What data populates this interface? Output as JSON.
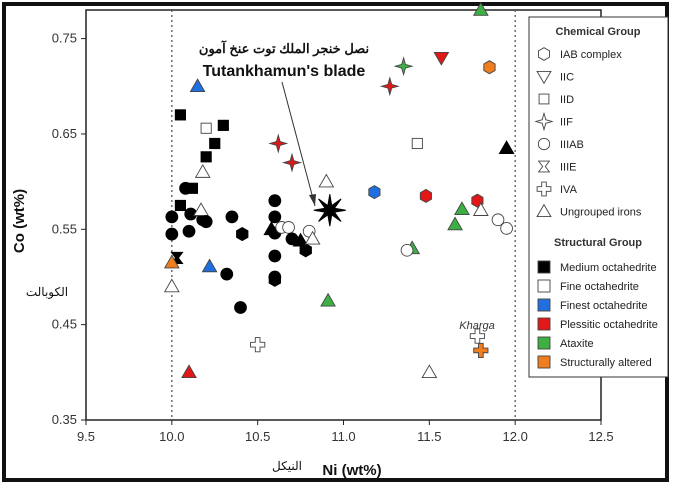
{
  "chart_data": {
    "type": "scatter",
    "xlabel": "Ni (wt%)",
    "ylabel": "Co (wt%)",
    "xlabel_arabic": "النيكل",
    "ylabel_arabic": "الكوبالت",
    "xlim": [
      9.5,
      12.5
    ],
    "ylim": [
      0.35,
      0.78
    ],
    "xticks": [
      "9.5",
      "10.0",
      "10.5",
      "11.0",
      "11.5",
      "12.0",
      "12.5"
    ],
    "yticks": [
      "0.35",
      "0.45",
      "0.55",
      "0.65",
      "0.75"
    ],
    "xtick_values": [
      9.5,
      10.0,
      10.5,
      11.0,
      11.5,
      12.0,
      12.5
    ],
    "ytick_values": [
      0.35,
      0.45,
      0.55,
      0.65,
      0.75
    ],
    "vlines": [
      10.0,
      12.0
    ],
    "annotation": {
      "arabic": "نصل خنجر الملك توت عنخ آمون",
      "english": "Tutankhamun's blade",
      "point": [
        10.92,
        0.57
      ]
    },
    "kharga_label": "Kharga",
    "colors": {
      "medium": "#000000",
      "fine": "#ffffff",
      "finest": "#1f6fe0",
      "plessitic": "#e21818",
      "ataxite": "#3cb043",
      "altered": "#f07d1e"
    },
    "legend_chemical": {
      "title": "Chemical Group",
      "items": [
        {
          "shape": "hexagon",
          "label": "IAB complex"
        },
        {
          "shape": "triangle-down",
          "label": "IIC"
        },
        {
          "shape": "square",
          "label": "IID"
        },
        {
          "shape": "star4",
          "label": "IIF"
        },
        {
          "shape": "circle",
          "label": "IIIAB"
        },
        {
          "shape": "hourglass",
          "label": "IIIE"
        },
        {
          "shape": "plus",
          "label": "IVA"
        },
        {
          "shape": "triangle",
          "label": "Ungrouped irons"
        }
      ]
    },
    "legend_structural": {
      "title": "Structural Group",
      "items": [
        {
          "color": "#000000",
          "label": "Medium octahedrite"
        },
        {
          "color": "#ffffff",
          "label": "Fine octahedrite"
        },
        {
          "color": "#1f6fe0",
          "label": "Finest octahedrite"
        },
        {
          "color": "#e21818",
          "label": "Plessitic octahedrite"
        },
        {
          "color": "#3cb043",
          "label": "Ataxite"
        },
        {
          "color": "#f07d1e",
          "label": "Structurally altered"
        }
      ]
    },
    "points": [
      {
        "x": 10.05,
        "y": 0.67,
        "shape": "square",
        "group": "medium"
      },
      {
        "x": 10.3,
        "y": 0.659,
        "shape": "square",
        "group": "medium"
      },
      {
        "x": 10.2,
        "y": 0.656,
        "shape": "square",
        "group": "fine"
      },
      {
        "x": 10.25,
        "y": 0.64,
        "shape": "square",
        "group": "medium"
      },
      {
        "x": 10.2,
        "y": 0.626,
        "shape": "square",
        "group": "medium"
      },
      {
        "x": 10.18,
        "y": 0.61,
        "shape": "triangle",
        "group": "fine"
      },
      {
        "x": 10.12,
        "y": 0.593,
        "shape": "square",
        "group": "medium"
      },
      {
        "x": 10.05,
        "y": 0.575,
        "shape": "square",
        "group": "medium"
      },
      {
        "x": 10.08,
        "y": 0.593,
        "shape": "circle",
        "group": "medium"
      },
      {
        "x": 10.6,
        "y": 0.58,
        "shape": "circle",
        "group": "medium"
      },
      {
        "x": 10.11,
        "y": 0.566,
        "shape": "circle",
        "group": "medium"
      },
      {
        "x": 10.0,
        "y": 0.563,
        "shape": "circle",
        "group": "medium"
      },
      {
        "x": 10.18,
        "y": 0.56,
        "shape": "circle",
        "group": "medium"
      },
      {
        "x": 10.35,
        "y": 0.563,
        "shape": "circle",
        "group": "medium"
      },
      {
        "x": 10.6,
        "y": 0.563,
        "shape": "circle",
        "group": "medium"
      },
      {
        "x": 10.17,
        "y": 0.57,
        "shape": "triangle",
        "group": "fine"
      },
      {
        "x": 10.2,
        "y": 0.558,
        "shape": "circle",
        "group": "medium"
      },
      {
        "x": 10.0,
        "y": 0.545,
        "shape": "circle",
        "group": "medium"
      },
      {
        "x": 10.1,
        "y": 0.548,
        "shape": "circle",
        "group": "medium"
      },
      {
        "x": 10.41,
        "y": 0.545,
        "shape": "hexagon",
        "group": "medium"
      },
      {
        "x": 10.6,
        "y": 0.546,
        "shape": "circle",
        "group": "medium"
      },
      {
        "x": 10.58,
        "y": 0.55,
        "shape": "triangle",
        "group": "medium"
      },
      {
        "x": 10.64,
        "y": 0.552,
        "shape": "circle",
        "group": "fine"
      },
      {
        "x": 10.68,
        "y": 0.552,
        "shape": "circle",
        "group": "fine"
      },
      {
        "x": 10.7,
        "y": 0.54,
        "shape": "circle",
        "group": "medium"
      },
      {
        "x": 10.75,
        "y": 0.538,
        "shape": "triangle",
        "group": "medium"
      },
      {
        "x": 10.78,
        "y": 0.528,
        "shape": "hexagon",
        "group": "medium"
      },
      {
        "x": 10.8,
        "y": 0.548,
        "shape": "circle",
        "group": "fine"
      },
      {
        "x": 10.82,
        "y": 0.54,
        "shape": "triangle",
        "group": "fine"
      },
      {
        "x": 10.6,
        "y": 0.522,
        "shape": "circle",
        "group": "medium"
      },
      {
        "x": 10.03,
        "y": 0.52,
        "shape": "hourglass",
        "group": "medium"
      },
      {
        "x": 10.0,
        "y": 0.515,
        "shape": "triangle",
        "group": "altered"
      },
      {
        "x": 10.6,
        "y": 0.5,
        "shape": "circle",
        "group": "medium"
      },
      {
        "x": 10.6,
        "y": 0.497,
        "shape": "hexagon",
        "group": "medium"
      },
      {
        "x": 10.32,
        "y": 0.503,
        "shape": "circle",
        "group": "medium"
      },
      {
        "x": 10.0,
        "y": 0.49,
        "shape": "triangle",
        "group": "fine"
      },
      {
        "x": 10.4,
        "y": 0.468,
        "shape": "circle",
        "group": "medium"
      },
      {
        "x": 10.5,
        "y": 0.429,
        "shape": "plus",
        "group": "fine"
      },
      {
        "x": 10.15,
        "y": 0.7,
        "shape": "triangle",
        "group": "finest"
      },
      {
        "x": 10.22,
        "y": 0.511,
        "shape": "triangle",
        "group": "finest"
      },
      {
        "x": 11.18,
        "y": 0.589,
        "shape": "hexagon",
        "group": "finest"
      },
      {
        "x": 10.1,
        "y": 0.4,
        "shape": "triangle",
        "group": "plessitic"
      },
      {
        "x": 10.62,
        "y": 0.64,
        "shape": "star4",
        "group": "plessitic"
      },
      {
        "x": 10.7,
        "y": 0.62,
        "shape": "star4",
        "group": "plessitic"
      },
      {
        "x": 11.27,
        "y": 0.7,
        "shape": "star4",
        "group": "plessitic"
      },
      {
        "x": 11.57,
        "y": 0.73,
        "shape": "triangle-down",
        "group": "plessitic"
      },
      {
        "x": 11.48,
        "y": 0.585,
        "shape": "hexagon",
        "group": "plessitic"
      },
      {
        "x": 11.78,
        "y": 0.58,
        "shape": "hexagon",
        "group": "plessitic"
      },
      {
        "x": 11.35,
        "y": 0.721,
        "shape": "star4",
        "group": "ataxite"
      },
      {
        "x": 11.8,
        "y": 0.78,
        "shape": "triangle",
        "group": "ataxite"
      },
      {
        "x": 11.4,
        "y": 0.53,
        "shape": "triangle",
        "group": "ataxite"
      },
      {
        "x": 11.65,
        "y": 0.555,
        "shape": "triangle",
        "group": "ataxite"
      },
      {
        "x": 11.69,
        "y": 0.571,
        "shape": "triangle",
        "group": "ataxite"
      },
      {
        "x": 10.91,
        "y": 0.475,
        "shape": "triangle",
        "group": "ataxite"
      },
      {
        "x": 11.85,
        "y": 0.72,
        "shape": "hexagon",
        "group": "altered"
      },
      {
        "x": 11.8,
        "y": 0.423,
        "shape": "plus",
        "group": "altered"
      },
      {
        "x": 11.78,
        "y": 0.438,
        "shape": "plus",
        "group": "fine"
      },
      {
        "x": 11.43,
        "y": 0.64,
        "shape": "square",
        "group": "fine"
      },
      {
        "x": 10.9,
        "y": 0.6,
        "shape": "triangle",
        "group": "fine"
      },
      {
        "x": 11.37,
        "y": 0.528,
        "shape": "circle",
        "group": "fine"
      },
      {
        "x": 11.8,
        "y": 0.57,
        "shape": "triangle",
        "group": "fine"
      },
      {
        "x": 11.9,
        "y": 0.56,
        "shape": "circle",
        "group": "fine"
      },
      {
        "x": 11.95,
        "y": 0.551,
        "shape": "circle",
        "group": "fine"
      },
      {
        "x": 11.5,
        "y": 0.4,
        "shape": "triangle",
        "group": "fine"
      },
      {
        "x": 11.95,
        "y": 0.635,
        "shape": "triangle",
        "group": "medium"
      }
    ]
  }
}
